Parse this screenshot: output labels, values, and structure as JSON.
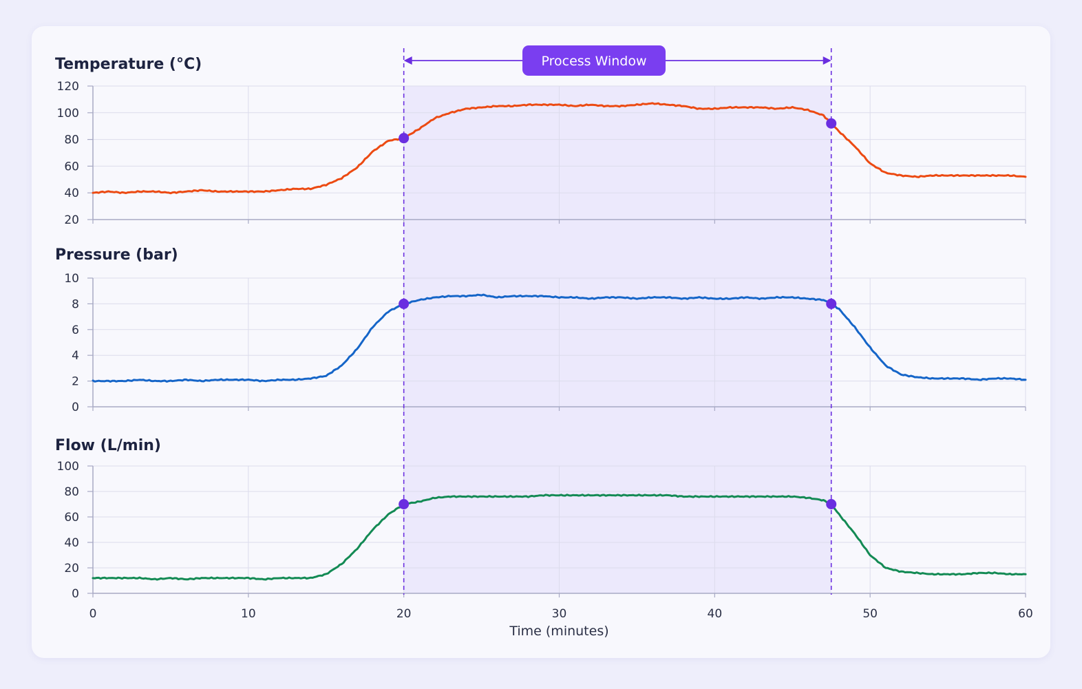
{
  "chart_data": {
    "type": "line",
    "xlabel": "Time (minutes)",
    "xlim": [
      0,
      60
    ],
    "xticks": [
      0,
      10,
      20,
      30,
      40,
      50,
      60
    ],
    "annotation": {
      "label": "Process Window",
      "start": 20,
      "end": 47.5,
      "color": "#6a2ee0"
    },
    "panels": [
      {
        "title": "Temperature (°C)",
        "ylim": [
          20,
          120
        ],
        "yticks": [
          20,
          40,
          60,
          80,
          100,
          120
        ],
        "color": "#ec4a12",
        "x": [
          0,
          1,
          2,
          3,
          4,
          5,
          6,
          7,
          8,
          9,
          10,
          11,
          12,
          13,
          14,
          15,
          16,
          17,
          18,
          19,
          20,
          21,
          22,
          23,
          24,
          25,
          26,
          27,
          28,
          29,
          30,
          31,
          32,
          33,
          34,
          35,
          36,
          37,
          38,
          39,
          40,
          41,
          42,
          43,
          44,
          45,
          46,
          47,
          47.5,
          48,
          49,
          50,
          51,
          52,
          53,
          54,
          55,
          56,
          57,
          58,
          59,
          60
        ],
        "y": [
          40,
          41,
          40,
          41,
          41,
          40,
          41,
          42,
          41,
          41,
          41,
          41,
          42,
          43,
          43,
          46,
          51,
          59,
          71,
          79,
          81,
          88,
          96,
          100,
          103,
          104,
          105,
          105,
          106,
          106,
          106,
          105,
          106,
          105,
          105,
          106,
          107,
          106,
          105,
          103,
          103,
          104,
          104,
          104,
          103,
          104,
          102,
          98,
          92,
          86,
          75,
          62,
          55,
          53,
          52,
          53,
          53,
          53,
          53,
          53,
          53,
          52
        ],
        "markers": [
          {
            "x": 20,
            "y": 81
          },
          {
            "x": 47.5,
            "y": 92
          }
        ]
      },
      {
        "title": "Pressure (bar)",
        "ylim": [
          0,
          10
        ],
        "yticks": [
          0,
          2,
          4,
          6,
          8,
          10
        ],
        "color": "#1565c8",
        "x": [
          0,
          1,
          2,
          3,
          4,
          5,
          6,
          7,
          8,
          9,
          10,
          11,
          12,
          13,
          14,
          15,
          16,
          17,
          18,
          19,
          20,
          21,
          22,
          23,
          24,
          25,
          26,
          27,
          28,
          29,
          30,
          31,
          32,
          33,
          34,
          35,
          36,
          37,
          38,
          39,
          40,
          41,
          42,
          43,
          44,
          45,
          46,
          47,
          47.5,
          48,
          49,
          50,
          51,
          52,
          53,
          54,
          55,
          56,
          57,
          58,
          59,
          60
        ],
        "y": [
          2.0,
          2.0,
          2.0,
          2.1,
          2.0,
          2.0,
          2.1,
          2.0,
          2.1,
          2.1,
          2.1,
          2.0,
          2.1,
          2.1,
          2.2,
          2.4,
          3.2,
          4.5,
          6.2,
          7.4,
          8.0,
          8.3,
          8.5,
          8.6,
          8.6,
          8.7,
          8.5,
          8.6,
          8.6,
          8.6,
          8.5,
          8.5,
          8.4,
          8.5,
          8.5,
          8.4,
          8.5,
          8.5,
          8.4,
          8.5,
          8.4,
          8.4,
          8.5,
          8.4,
          8.5,
          8.5,
          8.4,
          8.3,
          8.0,
          7.6,
          6.2,
          4.6,
          3.2,
          2.5,
          2.3,
          2.2,
          2.2,
          2.2,
          2.1,
          2.2,
          2.2,
          2.1
        ],
        "markers": [
          {
            "x": 20,
            "y": 8.0
          },
          {
            "x": 47.5,
            "y": 8.0
          }
        ]
      },
      {
        "title": "Flow (L/min)",
        "ylim": [
          0,
          100
        ],
        "yticks": [
          0,
          20,
          40,
          60,
          80,
          100
        ],
        "color": "#138a54",
        "x": [
          0,
          1,
          2,
          3,
          4,
          5,
          6,
          7,
          8,
          9,
          10,
          11,
          12,
          13,
          14,
          15,
          16,
          17,
          18,
          19,
          20,
          21,
          22,
          23,
          24,
          25,
          26,
          27,
          28,
          29,
          30,
          31,
          32,
          33,
          34,
          35,
          36,
          37,
          38,
          39,
          40,
          41,
          42,
          43,
          44,
          45,
          46,
          47,
          47.5,
          48,
          49,
          50,
          51,
          52,
          53,
          54,
          55,
          56,
          57,
          58,
          59,
          60
        ],
        "y": [
          12,
          12,
          12,
          12,
          11,
          12,
          11,
          12,
          12,
          12,
          12,
          11,
          12,
          12,
          12,
          15,
          23,
          35,
          50,
          62,
          70,
          72,
          75,
          76,
          76,
          76,
          76,
          76,
          76,
          77,
          77,
          77,
          77,
          77,
          77,
          77,
          77,
          77,
          76,
          76,
          76,
          76,
          76,
          76,
          76,
          76,
          75,
          73,
          70,
          62,
          47,
          30,
          20,
          17,
          16,
          15,
          15,
          15,
          16,
          16,
          15,
          15
        ],
        "markers": [
          {
            "x": 20,
            "y": 70
          },
          {
            "x": 47.5,
            "y": 70
          }
        ]
      }
    ]
  }
}
